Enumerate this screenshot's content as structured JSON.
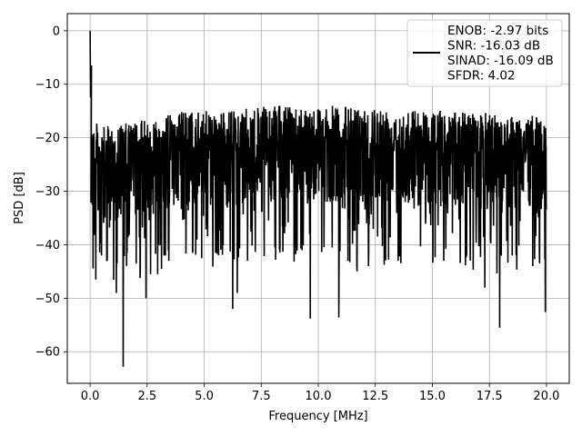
{
  "chart_data": {
    "type": "line",
    "title": "",
    "xlabel": "Frequency [MHz]",
    "ylabel": "PSD [dB]",
    "xlim": [
      -1.0,
      21.0
    ],
    "ylim": [
      -65.9,
      3.2
    ],
    "xticks": [
      0.0,
      2.5,
      5.0,
      7.5,
      10.0,
      12.5,
      15.0,
      17.5,
      20.0
    ],
    "xtick_labels": [
      "0.0",
      "2.5",
      "5.0",
      "7.5",
      "10.0",
      "12.5",
      "15.0",
      "17.5",
      "20.0"
    ],
    "yticks": [
      0,
      -10,
      -20,
      -30,
      -40,
      -50,
      -60
    ],
    "ytick_labels": [
      "0",
      "−10",
      "−20",
      "−30",
      "−40",
      "−50",
      "−60"
    ],
    "grid": true,
    "legend_position": "top-right",
    "series": [
      {
        "name": "ENOB: -2.97 bits",
        "color": "#000000",
        "description_lines": [
          "ENOB: -2.97 bits",
          "SNR: -16.03 dB",
          "SINAD: -16.09 dB",
          "SFDR: 4.02"
        ],
        "noise": {
          "x_start": 0.0,
          "x_end": 20.0,
          "points": 2000,
          "upper_envelope": [
            [
              0.0,
              -16
            ],
            [
              0.5,
              -18
            ],
            [
              2.0,
              -17
            ],
            [
              4.0,
              -15
            ],
            [
              6.0,
              -15
            ],
            [
              8.0,
              -14
            ],
            [
              12.0,
              -14
            ],
            [
              16.0,
              -15
            ],
            [
              20.0,
              -16
            ]
          ],
          "mean": -25
        },
        "peaks": [
          {
            "x": 0.0,
            "y": 0.0
          },
          {
            "x": 0.02,
            "y": -12.5
          },
          {
            "x": 0.06,
            "y": -6.5
          }
        ],
        "dips": [
          {
            "x": 0.25,
            "y": -46.5
          },
          {
            "x": 0.5,
            "y": -42
          },
          {
            "x": 0.75,
            "y": -43
          },
          {
            "x": 1.15,
            "y": -49
          },
          {
            "x": 1.45,
            "y": -62.8
          },
          {
            "x": 2.2,
            "y": -45
          },
          {
            "x": 2.45,
            "y": -50
          },
          {
            "x": 2.65,
            "y": -45.5
          },
          {
            "x": 3.3,
            "y": -42
          },
          {
            "x": 4.5,
            "y": -41
          },
          {
            "x": 5.5,
            "y": -41.5
          },
          {
            "x": 6.25,
            "y": -52
          },
          {
            "x": 6.45,
            "y": -49
          },
          {
            "x": 6.9,
            "y": -43
          },
          {
            "x": 8.3,
            "y": -41
          },
          {
            "x": 9.65,
            "y": -53.8
          },
          {
            "x": 10.9,
            "y": -53.6
          },
          {
            "x": 11.3,
            "y": -43
          },
          {
            "x": 11.7,
            "y": -45
          },
          {
            "x": 12.2,
            "y": -44
          },
          {
            "x": 13.5,
            "y": -43
          },
          {
            "x": 15.5,
            "y": -43
          },
          {
            "x": 16.5,
            "y": -42
          },
          {
            "x": 17.3,
            "y": -48
          },
          {
            "x": 17.95,
            "y": -55.5
          },
          {
            "x": 18.5,
            "y": -42
          },
          {
            "x": 19.4,
            "y": -44
          },
          {
            "x": 19.95,
            "y": -52.6
          }
        ]
      }
    ]
  }
}
